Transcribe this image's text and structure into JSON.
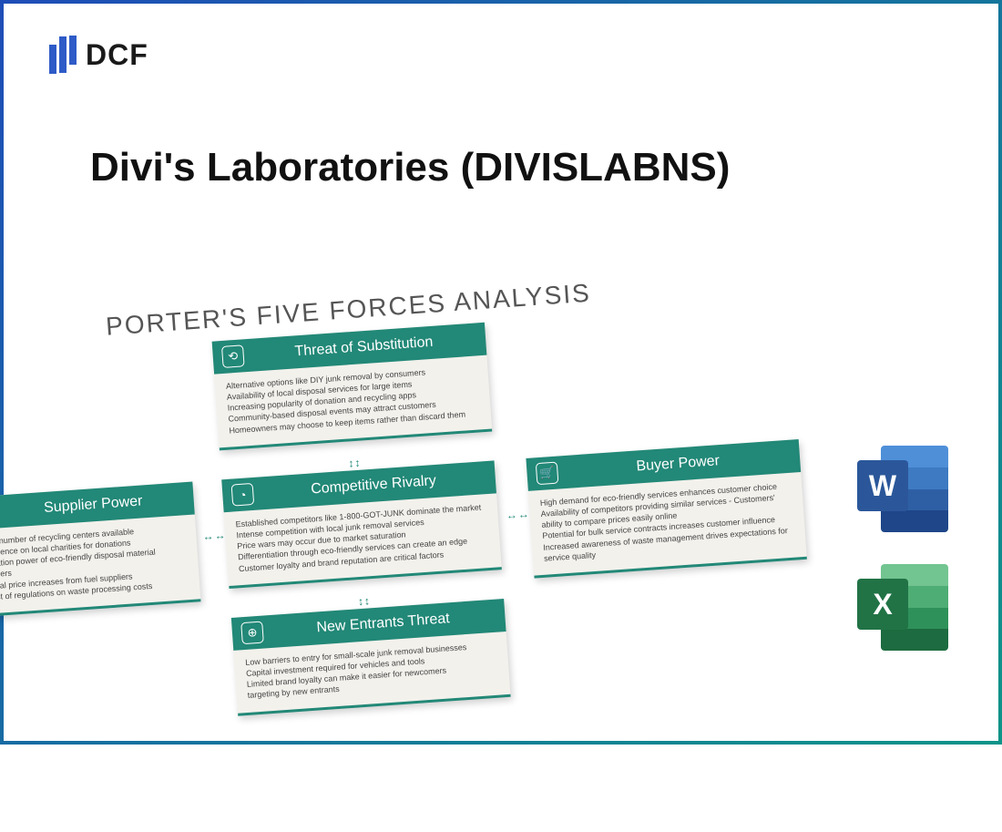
{
  "logo_text": "DCF",
  "main_title": "Divi's Laboratories (DIVISLABNS)",
  "chart_title": "PORTER'S FIVE FORCES ANALYSIS",
  "colors": {
    "border_gradient_start": "#1e4db7",
    "border_gradient_end": "#0d9488",
    "logo_bar": "#2e5bc7",
    "card_header": "#228877",
    "card_body_bg": "#f3f1ec",
    "body_text": "#444444",
    "word_front": "#2b579a",
    "excel_front": "#217346"
  },
  "forces": {
    "substitution": {
      "title": "Threat of Substitution",
      "icon_glyph": "⟲",
      "items": [
        "Alternative options like DIY junk removal by consumers",
        "Availability of local disposal services for large items",
        "Increasing popularity of donation and recycling apps",
        "Community-based disposal events may attract customers",
        "Homeowners may choose to keep items rather than discard them"
      ]
    },
    "supplier": {
      "title": "Supplier Power",
      "icon_glyph": "⊷",
      "items": [
        "mited number of recycling centers available",
        "ependence on local charities for donations",
        "egotiation power of eco-friendly disposal material suppliers",
        "otential price increases from fuel suppliers",
        "mpact of regulations on waste processing costs"
      ]
    },
    "rivalry": {
      "title": "Competitive Rivalry",
      "icon_glyph": "◔",
      "items": [
        "Established competitors like 1-800-GOT-JUNK dominate the market",
        "Intense competition with local junk removal services",
        "Price wars may occur due to market saturation",
        "Differentiation through eco-friendly services can create an edge",
        "Customer loyalty and brand reputation are critical factors"
      ]
    },
    "buyer": {
      "title": "Buyer Power",
      "icon_glyph": "🛒",
      "items": [
        "High demand for eco-friendly services enhances customer choice",
        "Availability of competitors providing similar services  - Customers' ability to compare prices easily online",
        "Potential for bulk service contracts increases customer influence",
        "Increased awareness of waste management drives expectations for service quality"
      ]
    },
    "entrants": {
      "title": "New Entrants Threat",
      "icon_glyph": "⊕",
      "items": [
        "Low barriers to entry for small-scale junk removal businesses",
        "Capital investment required for vehicles and tools",
        "Limited brand loyalty can make it easier for newcomers",
        "                                    targeting by new entrants"
      ]
    }
  },
  "office_icons": {
    "word": {
      "letter": "W",
      "stripes": [
        "#4e8fd8",
        "#3d7ac2",
        "#2e5fa4",
        "#1e4688"
      ],
      "front": "#2b579a"
    },
    "excel": {
      "letter": "X",
      "stripes": [
        "#72c490",
        "#4ead74",
        "#2e915a",
        "#1d6b40"
      ],
      "front": "#217346"
    }
  }
}
